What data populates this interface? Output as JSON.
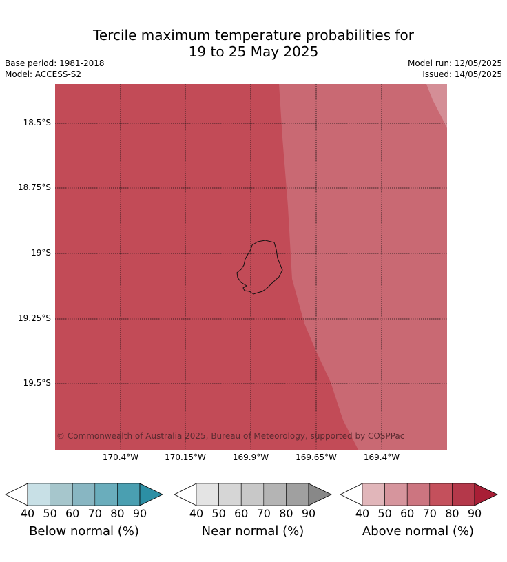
{
  "title": {
    "line1": "Tercile maximum temperature probabilities for",
    "line2": "19 to 25 May 2025"
  },
  "meta": {
    "base_period": "Base period: 1981-2018",
    "model": "Model: ACCESS-S2",
    "model_run": "Model run: 12/05/2025",
    "issued": "Issued: 14/05/2025"
  },
  "map": {
    "copyright": "© Commonwealth of Australia 2025, Bureau of Meteorology, supported by COSPPac",
    "lat_labels": [
      "18.5°S",
      "18.75°S",
      "19°S",
      "19.25°S",
      "19.5°S"
    ],
    "lon_labels": [
      "170.4°W",
      "170.15°W",
      "169.9°W",
      "169.65°W",
      "169.4°W"
    ],
    "regions": [
      {
        "category": "Above normal",
        "probability_bin": "70–80"
      },
      {
        "category": "Above normal",
        "probability_bin": "60–70"
      },
      {
        "category": "Above normal",
        "probability_bin": "50–60"
      }
    ]
  },
  "legends": [
    {
      "title": "Below normal (%)",
      "ticks": [
        "40",
        "50",
        "60",
        "70",
        "80",
        "90"
      ],
      "colors": [
        "#c8e0e6",
        "#a6c6cc",
        "#88b6c2",
        "#6aadbc",
        "#4a9fb1",
        "#2c8fa5"
      ]
    },
    {
      "title": "Near normal (%)",
      "ticks": [
        "40",
        "50",
        "60",
        "70",
        "80",
        "90"
      ],
      "colors": [
        "#e4e4e4",
        "#d6d6d6",
        "#c8c8c8",
        "#b4b4b4",
        "#a0a0a0",
        "#888888"
      ]
    },
    {
      "title": "Above normal (%)",
      "ticks": [
        "40",
        "50",
        "60",
        "70",
        "80",
        "90"
      ],
      "colors": [
        "#e1b6ba",
        "#d6959d",
        "#cc7580",
        "#c4505c",
        "#b4384a",
        "#a81e36"
      ]
    }
  ]
}
